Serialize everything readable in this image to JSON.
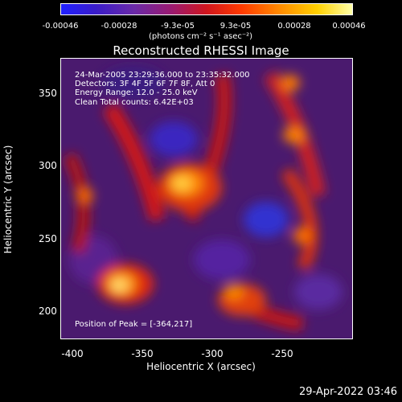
{
  "colorbar": {
    "ticks": [
      "-0.00046",
      "-0.00028",
      "-9.3e-05",
      "9.3e-05",
      "0.00028",
      "0.00046"
    ],
    "unit": "(photons cm⁻² s⁻¹ asec⁻²)"
  },
  "title": "Reconstructed RHESSI Image",
  "info": {
    "time_range": "24-Mar-2005 23:29:36.000 to 23:35:32.000",
    "detectors": "Detectors: 3F 4F 5F 6F 7F 8F, Att 0",
    "energy": "Energy Range: 12.0 - 25.0 keV",
    "method": "Clean     Total counts: 6.42E+03",
    "peak": "Position of Peak = [-364,217]"
  },
  "axes": {
    "xlabel": "Heliocentric X (arcsec)",
    "ylabel": "Heliocentric Y (arcsec)",
    "xticks": [
      "-400",
      "-350",
      "-300",
      "-250"
    ],
    "yticks": [
      "350",
      "300",
      "250",
      "200"
    ]
  },
  "footer": {
    "timestamp": "29-Apr-2022 03:46"
  }
}
